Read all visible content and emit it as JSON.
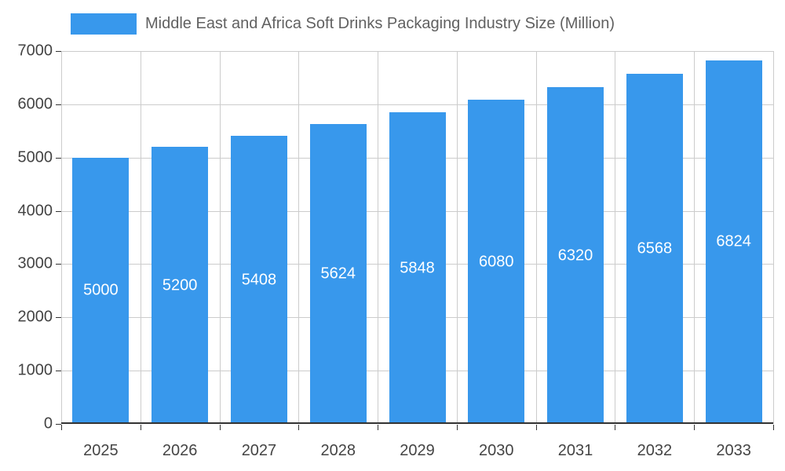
{
  "chart_data": {
    "type": "bar",
    "title": "Middle East and Africa Soft Drinks Packaging Industry Size (Million)",
    "categories": [
      "2025",
      "2026",
      "2027",
      "2028",
      "2029",
      "2030",
      "2031",
      "2032",
      "2033"
    ],
    "values": [
      5000,
      5200,
      5408,
      5624,
      5848,
      6080,
      6320,
      6568,
      6824
    ],
    "xlabel": "",
    "ylabel": "",
    "ylim": [
      0,
      7000
    ],
    "ytick_step": 1000,
    "grid": true,
    "legend_position": "top",
    "bar_color": "#3898EC",
    "value_label_color": "#ffffff",
    "axis_text_color": "#444444",
    "gridline_color": "#cccccc",
    "baseline_color": "#333333"
  }
}
